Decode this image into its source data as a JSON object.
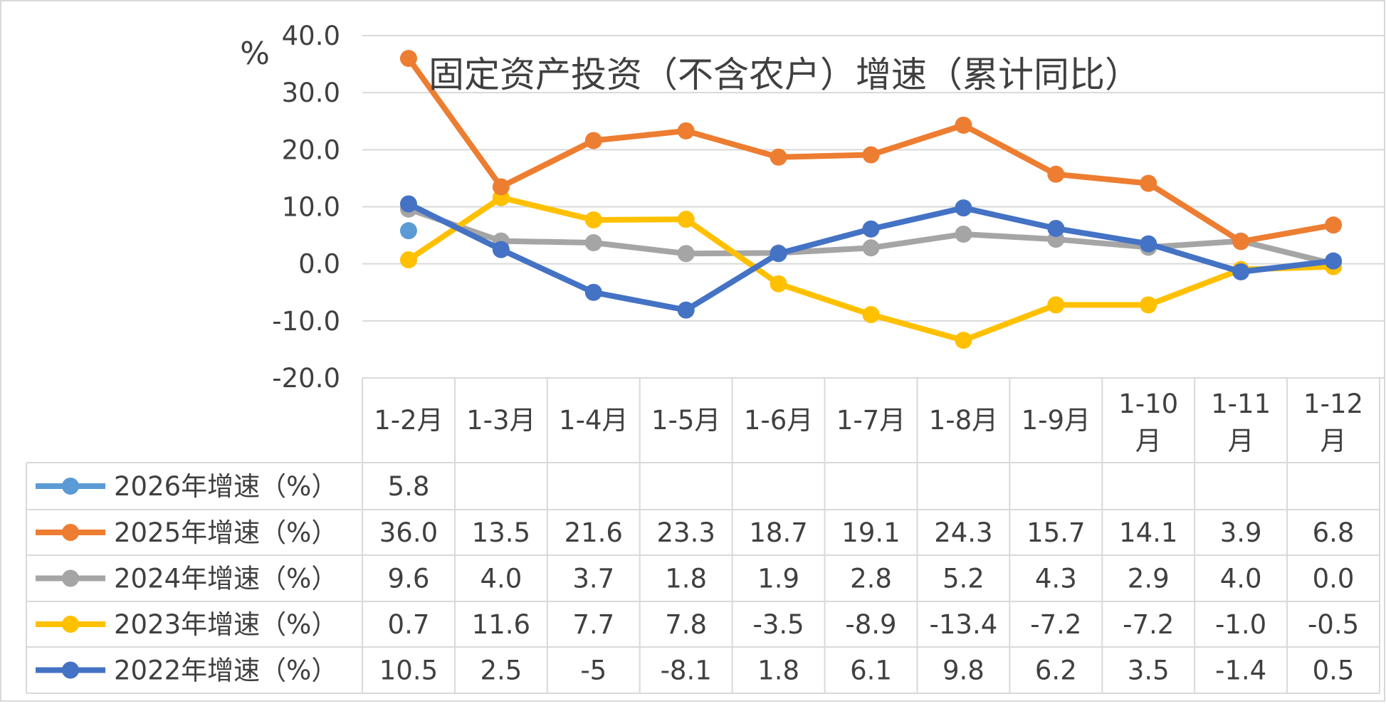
{
  "chart_data": {
    "type": "line",
    "title": "固定资产投资（不含农户）增速（累计同比）",
    "ylabel": "%",
    "ylim": [
      -20,
      40
    ],
    "yticks": [
      "40.0",
      "30.0",
      "20.0",
      "10.0",
      "0.0",
      "-10.0",
      "-20.0"
    ],
    "ytick_values": [
      40,
      30,
      20,
      10,
      0,
      -10,
      -20
    ],
    "grid": true,
    "legend": "data-table",
    "categories": [
      "1-2月",
      "1-3月",
      "1-4月",
      "1-5月",
      "1-6月",
      "1-7月",
      "1-8月",
      "1-9月",
      "1-10月",
      "1-11月",
      "1-12月"
    ],
    "series": [
      {
        "name": "2026年增速（%）",
        "color": "#5B9BD5",
        "values": [
          5.8,
          null,
          null,
          null,
          null,
          null,
          null,
          null,
          null,
          null,
          null
        ],
        "labels": [
          "5.8",
          "",
          "",
          "",
          "",
          "",
          "",
          "",
          "",
          "",
          ""
        ]
      },
      {
        "name": "2025年增速（%）",
        "color": "#ED7D31",
        "values": [
          36.0,
          13.5,
          21.6,
          23.3,
          18.7,
          19.1,
          24.3,
          15.7,
          14.1,
          3.9,
          6.8
        ],
        "labels": [
          "36.0",
          "13.5",
          "21.6",
          "23.3",
          "18.7",
          "19.1",
          "24.3",
          "15.7",
          "14.1",
          "3.9",
          "6.8"
        ]
      },
      {
        "name": "2024年增速（%）",
        "color": "#A5A5A5",
        "values": [
          9.6,
          4.0,
          3.7,
          1.8,
          1.9,
          2.8,
          5.2,
          4.3,
          2.9,
          4.0,
          0.0
        ],
        "labels": [
          "9.6",
          "4.0",
          "3.7",
          "1.8",
          "1.9",
          "2.8",
          "5.2",
          "4.3",
          "2.9",
          "4.0",
          "0.0"
        ]
      },
      {
        "name": "2023年增速（%）",
        "color": "#FFC000",
        "values": [
          0.7,
          11.6,
          7.7,
          7.8,
          -3.5,
          -8.9,
          -13.4,
          -7.2,
          -7.2,
          -1.0,
          -0.5
        ],
        "labels": [
          "0.7",
          "11.6",
          "7.7",
          "7.8",
          "-3.5",
          "-8.9",
          "-13.4",
          "-7.2",
          "-7.2",
          "-1.0",
          "-0.5"
        ]
      },
      {
        "name": "2022年增速（%）",
        "color": "#4472C4",
        "values": [
          10.5,
          2.5,
          -5,
          -8.1,
          1.8,
          6.1,
          9.8,
          6.2,
          3.5,
          -1.4,
          0.5
        ],
        "labels": [
          "10.5",
          "2.5",
          "-5",
          "-8.1",
          "1.8",
          "6.1",
          "9.8",
          "6.2",
          "3.5",
          "-1.4",
          "0.5"
        ]
      }
    ]
  }
}
